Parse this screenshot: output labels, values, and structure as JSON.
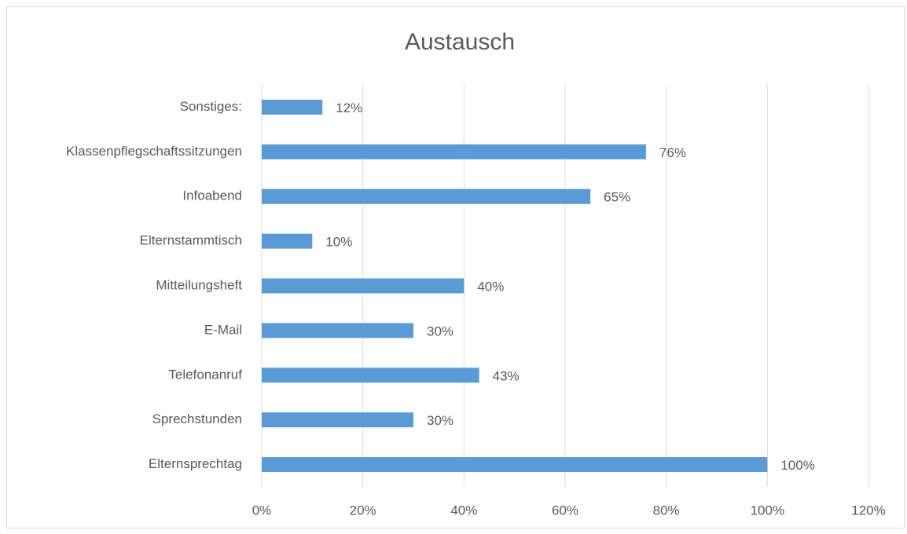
{
  "chart_data": {
    "type": "bar",
    "orientation": "horizontal",
    "title": "Austausch",
    "categories": [
      "Sonstiges:",
      "Klassenpflegschaftssitzungen",
      "Infoabend",
      "Elternstammtisch",
      "Mitteilungsheft",
      "E-Mail",
      "Telefonanruf",
      "Sprechstunden",
      "Elternsprechtag"
    ],
    "values": [
      12,
      76,
      65,
      10,
      40,
      30,
      43,
      30,
      100
    ],
    "value_labels": [
      "12%",
      "76%",
      "65%",
      "10%",
      "40%",
      "30%",
      "43%",
      "30%",
      "100%"
    ],
    "color": "#5b9bd5",
    "xlim": [
      0,
      120
    ],
    "xticks": [
      {
        "value": 0,
        "label": "0%"
      },
      {
        "value": 20,
        "label": "20%"
      },
      {
        "value": 40,
        "label": "40%"
      },
      {
        "value": 60,
        "label": "60%"
      },
      {
        "value": 80,
        "label": "80%"
      },
      {
        "value": 100,
        "label": "100%"
      },
      {
        "value": 120,
        "label": "120%"
      }
    ],
    "grid": true
  }
}
